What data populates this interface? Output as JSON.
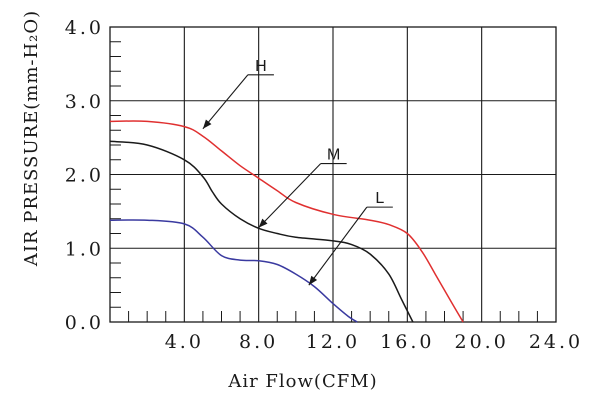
{
  "chart_data": {
    "type": "line",
    "xlabel": "Air Flow(CFM)",
    "ylabel": "AIR PRESSURE(mm-H₂O)",
    "xlim": [
      0,
      24
    ],
    "ylim": [
      0,
      4
    ],
    "x_ticks": [
      4,
      8,
      12,
      16,
      20,
      24
    ],
    "x_tick_labels": [
      "4.0",
      "8.0",
      "12.0",
      "16.0",
      "20.0",
      "24.0"
    ],
    "y_ticks": [
      0,
      1,
      2,
      3,
      4
    ],
    "y_tick_labels": [
      "0.0",
      "1.0",
      "2.0",
      "3.0",
      "4.0"
    ],
    "grid": true,
    "series": [
      {
        "name": "H",
        "color": "#e03030",
        "x": [
          0,
          2,
          4,
          5,
          6,
          7,
          8,
          9,
          10,
          12,
          14,
          15,
          16,
          16.8,
          17.5,
          18.3,
          19
        ],
        "y": [
          2.72,
          2.72,
          2.65,
          2.52,
          2.32,
          2.12,
          1.95,
          1.78,
          1.62,
          1.46,
          1.38,
          1.32,
          1.2,
          0.95,
          0.65,
          0.3,
          0
        ]
      },
      {
        "name": "M",
        "color": "#1a1a1a",
        "x": [
          0,
          2,
          4,
          5,
          5.5,
          6,
          7,
          8,
          9,
          10,
          12,
          13,
          14,
          15,
          15.7,
          16.3
        ],
        "y": [
          2.45,
          2.4,
          2.2,
          1.97,
          1.77,
          1.6,
          1.4,
          1.27,
          1.2,
          1.15,
          1.1,
          1.05,
          0.92,
          0.65,
          0.3,
          0
        ]
      },
      {
        "name": "L",
        "color": "#3a3aa0",
        "x": [
          0,
          2,
          4,
          5,
          6,
          7,
          8,
          9,
          10,
          11,
          12,
          12.8,
          13.3
        ],
        "y": [
          1.38,
          1.38,
          1.33,
          1.15,
          0.9,
          0.84,
          0.83,
          0.78,
          0.65,
          0.48,
          0.25,
          0.08,
          0
        ]
      }
    ],
    "annotations": [
      {
        "text": "H",
        "series": "H",
        "point": [
          5,
          2.62
        ]
      },
      {
        "text": "M",
        "series": "M",
        "point": [
          8,
          1.28
        ]
      },
      {
        "text": "L",
        "series": "L",
        "point": [
          10.7,
          0.5
        ]
      }
    ]
  }
}
